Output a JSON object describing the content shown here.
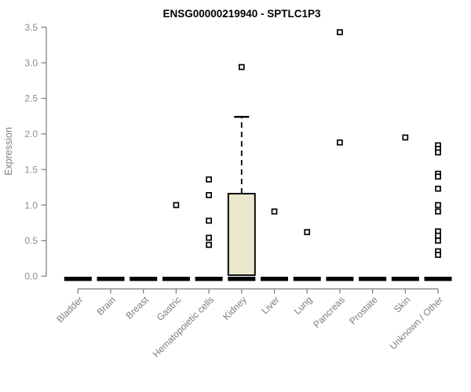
{
  "page": {
    "background": "#ffffff"
  },
  "chart_data": {
    "type": "boxplot",
    "title": "ENSG00000219940 - SPTLC1P3",
    "xlabel": "",
    "ylabel": "Expression",
    "ylim": [
      0,
      3.5
    ],
    "yticks": [
      "0.0",
      "0.5",
      "1.0",
      "1.5",
      "2.0",
      "2.5",
      "3.0",
      "3.5"
    ],
    "grid": false,
    "legend": "none",
    "colors": {
      "box_fill": "#ECE8CF",
      "box_border": "#000000",
      "median": "#000000",
      "outlier_stroke": "#000000",
      "outlier_fill": "#ffffff",
      "axis": "#7a7a7a",
      "xtick_label": "#7d7d7d",
      "ytick_label": "#82909c",
      "title": "#000000"
    },
    "categories": [
      "Bladder",
      "Brain",
      "Breast",
      "Gastric",
      "Hematopoietic cells",
      "Kidney",
      "Liver",
      "Lung",
      "Pancreas",
      "Prostate",
      "Skin",
      "Unknown / Other"
    ],
    "boxes": [
      {
        "category": "Bladder",
        "q1": 0,
        "median": 0,
        "q3": 0,
        "whisker_low": 0,
        "whisker_high": 0,
        "outliers": []
      },
      {
        "category": "Brain",
        "q1": 0,
        "median": 0,
        "q3": 0,
        "whisker_low": 0,
        "whisker_high": 0,
        "outliers": []
      },
      {
        "category": "Breast",
        "q1": 0,
        "median": 0,
        "q3": 0,
        "whisker_low": 0,
        "whisker_high": 0,
        "outliers": []
      },
      {
        "category": "Gastric",
        "q1": 0,
        "median": 0,
        "q3": 0,
        "whisker_low": 0,
        "whisker_high": 0,
        "outliers": [
          1.0
        ]
      },
      {
        "category": "Hematopoietic cells",
        "q1": 0,
        "median": 0,
        "q3": 0,
        "whisker_low": 0,
        "whisker_high": 0,
        "outliers": [
          1.36,
          1.14,
          0.78,
          0.54,
          0.44
        ]
      },
      {
        "category": "Kidney",
        "q1": 0.015,
        "median": 0,
        "q3": 1.16,
        "whisker_low": 0.015,
        "whisker_high": 2.24,
        "outliers": [
          2.94
        ]
      },
      {
        "category": "Liver",
        "q1": 0,
        "median": 0,
        "q3": 0,
        "whisker_low": 0,
        "whisker_high": 0,
        "outliers": [
          0.91
        ]
      },
      {
        "category": "Lung",
        "q1": 0,
        "median": 0,
        "q3": 0,
        "whisker_low": 0,
        "whisker_high": 0,
        "outliers": [
          0.62
        ]
      },
      {
        "category": "Pancreas",
        "q1": 0,
        "median": 0,
        "q3": 0,
        "whisker_low": 0,
        "whisker_high": 0,
        "outliers": [
          3.43,
          1.88
        ]
      },
      {
        "category": "Prostate",
        "q1": 0,
        "median": 0,
        "q3": 0,
        "whisker_low": 0,
        "whisker_high": 0,
        "outliers": []
      },
      {
        "category": "Skin",
        "q1": 0,
        "median": 0,
        "q3": 0,
        "whisker_low": 0,
        "whisker_high": 0,
        "outliers": [
          1.95
        ]
      },
      {
        "category": "Unknown / Other",
        "q1": 0,
        "median": 0,
        "q3": 0,
        "whisker_low": 0,
        "whisker_high": 0,
        "outliers": [
          1.84,
          1.79,
          1.74,
          1.44,
          1.4,
          1.23,
          1.0,
          0.91,
          0.63,
          0.57,
          0.5,
          0.35,
          0.3
        ]
      }
    ]
  }
}
